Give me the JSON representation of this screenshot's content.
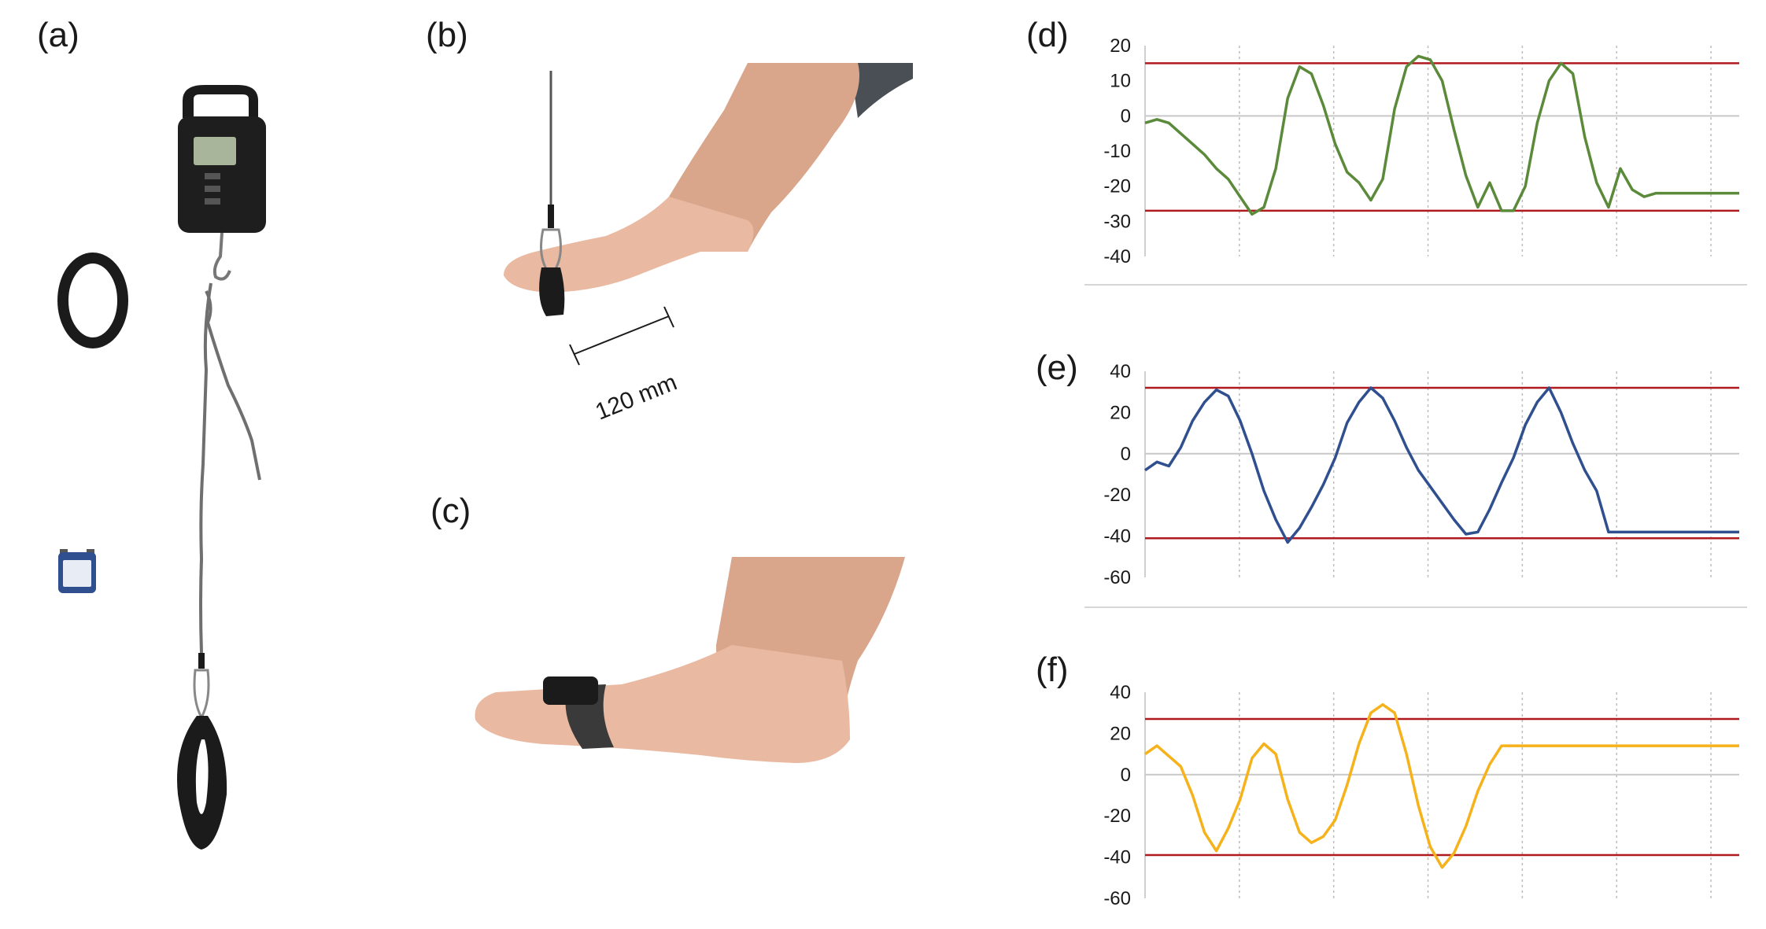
{
  "panels": {
    "a": "(a)",
    "b": "(b)",
    "c": "(c)",
    "d": "(d)",
    "e": "(e)",
    "f": "(f)"
  },
  "annotation_b": "120 mm",
  "colors": {
    "threshold": "#b0191e",
    "series_d": "#5a8a3a",
    "series_e": "#2f4f8f",
    "series_f": "#f5b21b",
    "zero_line": "#c8c8c8",
    "grid": "#bdbdbd",
    "skin": "#e9b9a1",
    "strap": "#1b1b1b"
  },
  "icons": [
    "scale-icon",
    "strap-icon",
    "imu-sensor-icon",
    "carabiner-icon"
  ],
  "chart_data": [
    {
      "panel": "d",
      "type": "line",
      "yticks": [
        20,
        10,
        0,
        -10,
        -20,
        -30,
        -40
      ],
      "ylim": [
        -40,
        20
      ],
      "thresholds": [
        15,
        -27
      ],
      "x": [
        0,
        2,
        4,
        6,
        8,
        10,
        12,
        14,
        16,
        18,
        20,
        22,
        24,
        26,
        28,
        30,
        32,
        34,
        36,
        38,
        40,
        42,
        44,
        46,
        48,
        50,
        52,
        54,
        56,
        58,
        60,
        62,
        64,
        66,
        68,
        70,
        72,
        74,
        76,
        78,
        80,
        82,
        84,
        86,
        88,
        90,
        92,
        94,
        96,
        98,
        100
      ],
      "values": [
        -2,
        -1,
        -2,
        -5,
        -8,
        -11,
        -15,
        -18,
        -23,
        -28,
        -26,
        -15,
        5,
        14,
        12,
        3,
        -8,
        -16,
        -19,
        -24,
        -18,
        2,
        14,
        17,
        16,
        10,
        -4,
        -17,
        -26,
        -19,
        -27,
        -27,
        -20,
        -2,
        10,
        15,
        12,
        -6,
        -19,
        -26,
        -15,
        -21,
        -23,
        -22,
        -22,
        -22,
        -22,
        -22,
        -22,
        -22,
        -22
      ]
    },
    {
      "panel": "e",
      "type": "line",
      "yticks": [
        40,
        20,
        0,
        -20,
        -40,
        -60
      ],
      "ylim": [
        -60,
        40
      ],
      "thresholds": [
        32,
        -41
      ],
      "x": [
        0,
        2,
        4,
        6,
        8,
        10,
        12,
        14,
        16,
        18,
        20,
        22,
        24,
        26,
        28,
        30,
        32,
        34,
        36,
        38,
        40,
        42,
        44,
        46,
        48,
        50,
        52,
        54,
        56,
        58,
        60,
        62,
        64,
        66,
        68,
        70,
        72,
        74,
        76,
        78,
        80,
        82,
        84,
        86,
        88,
        90,
        92,
        94,
        96,
        98,
        100
      ],
      "values": [
        -8,
        -4,
        -6,
        3,
        16,
        25,
        31,
        28,
        16,
        0,
        -18,
        -32,
        -43,
        -36,
        -26,
        -15,
        -2,
        15,
        25,
        32,
        27,
        16,
        3,
        -8,
        -16,
        -24,
        -32,
        -39,
        -38,
        -27,
        -14,
        -2,
        14,
        25,
        32,
        20,
        5,
        -8,
        -18,
        -38,
        -38,
        -38,
        -38,
        -38,
        -38,
        -38,
        -38,
        -38,
        -38,
        -38,
        -38
      ]
    },
    {
      "panel": "f",
      "type": "line",
      "yticks": [
        40,
        20,
        0,
        -20,
        -40,
        -60
      ],
      "ylim": [
        -60,
        40
      ],
      "thresholds": [
        27,
        -39
      ],
      "x": [
        0,
        2,
        4,
        6,
        8,
        10,
        12,
        14,
        16,
        18,
        20,
        22,
        24,
        26,
        28,
        30,
        32,
        34,
        36,
        38,
        40,
        42,
        44,
        46,
        48,
        50,
        52,
        54,
        56,
        58,
        60,
        62,
        64,
        66,
        68,
        70,
        72,
        74,
        76,
        78,
        80,
        82,
        84,
        86,
        88,
        90,
        92,
        94,
        96,
        98,
        100
      ],
      "values": [
        10,
        14,
        9,
        4,
        -10,
        -28,
        -37,
        -26,
        -12,
        8,
        15,
        10,
        -12,
        -28,
        -33,
        -30,
        -22,
        -5,
        15,
        30,
        34,
        30,
        10,
        -15,
        -35,
        -45,
        -38,
        -25,
        -8,
        5,
        14,
        14,
        14,
        14,
        14,
        14,
        14,
        14,
        14,
        14,
        14,
        14,
        14,
        14,
        14,
        14,
        14,
        14,
        14,
        14,
        14
      ]
    }
  ]
}
